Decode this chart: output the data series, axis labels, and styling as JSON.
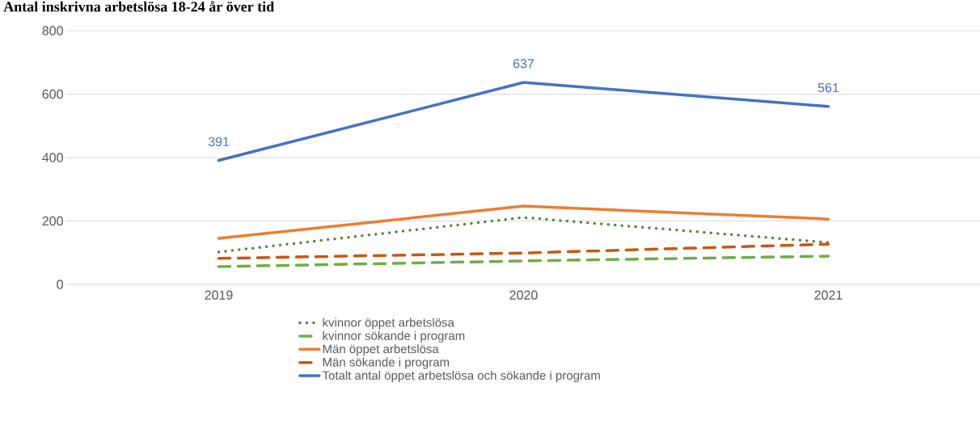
{
  "chart_data": {
    "type": "line",
    "title": "Antal inskrivna arbetslösa 18-24 år över tid",
    "categories": [
      "2019",
      "2020",
      "2021"
    ],
    "series": [
      {
        "name": "kvinnor öppet arbetslösa",
        "color": "#548235",
        "line_style": "dotted",
        "values": [
          102,
          211,
          132
        ]
      },
      {
        "name": "kvinnor sökande i program",
        "color": "#70ad47",
        "line_style": "dashed",
        "values": [
          56,
          74,
          89
        ]
      },
      {
        "name": "Män öppet arbetslösa",
        "color": "#ed7d31",
        "line_style": "solid",
        "values": [
          145,
          247,
          206
        ]
      },
      {
        "name": "Män sökande i program",
        "color": "#c55a11",
        "line_style": "dashed",
        "values": [
          82,
          99,
          127
        ]
      },
      {
        "name": "Totalt antal öppet arbetslösa och sökande i program",
        "color": "#4472c4",
        "line_style": "solid",
        "values": [
          391,
          637,
          561
        ],
        "value_labels": [
          "391",
          "637",
          "561"
        ]
      }
    ],
    "ylim": [
      0,
      800
    ],
    "yticks": [
      0,
      200,
      400,
      600,
      800
    ],
    "grid": "y",
    "legend": "bottom",
    "marker": "none"
  }
}
